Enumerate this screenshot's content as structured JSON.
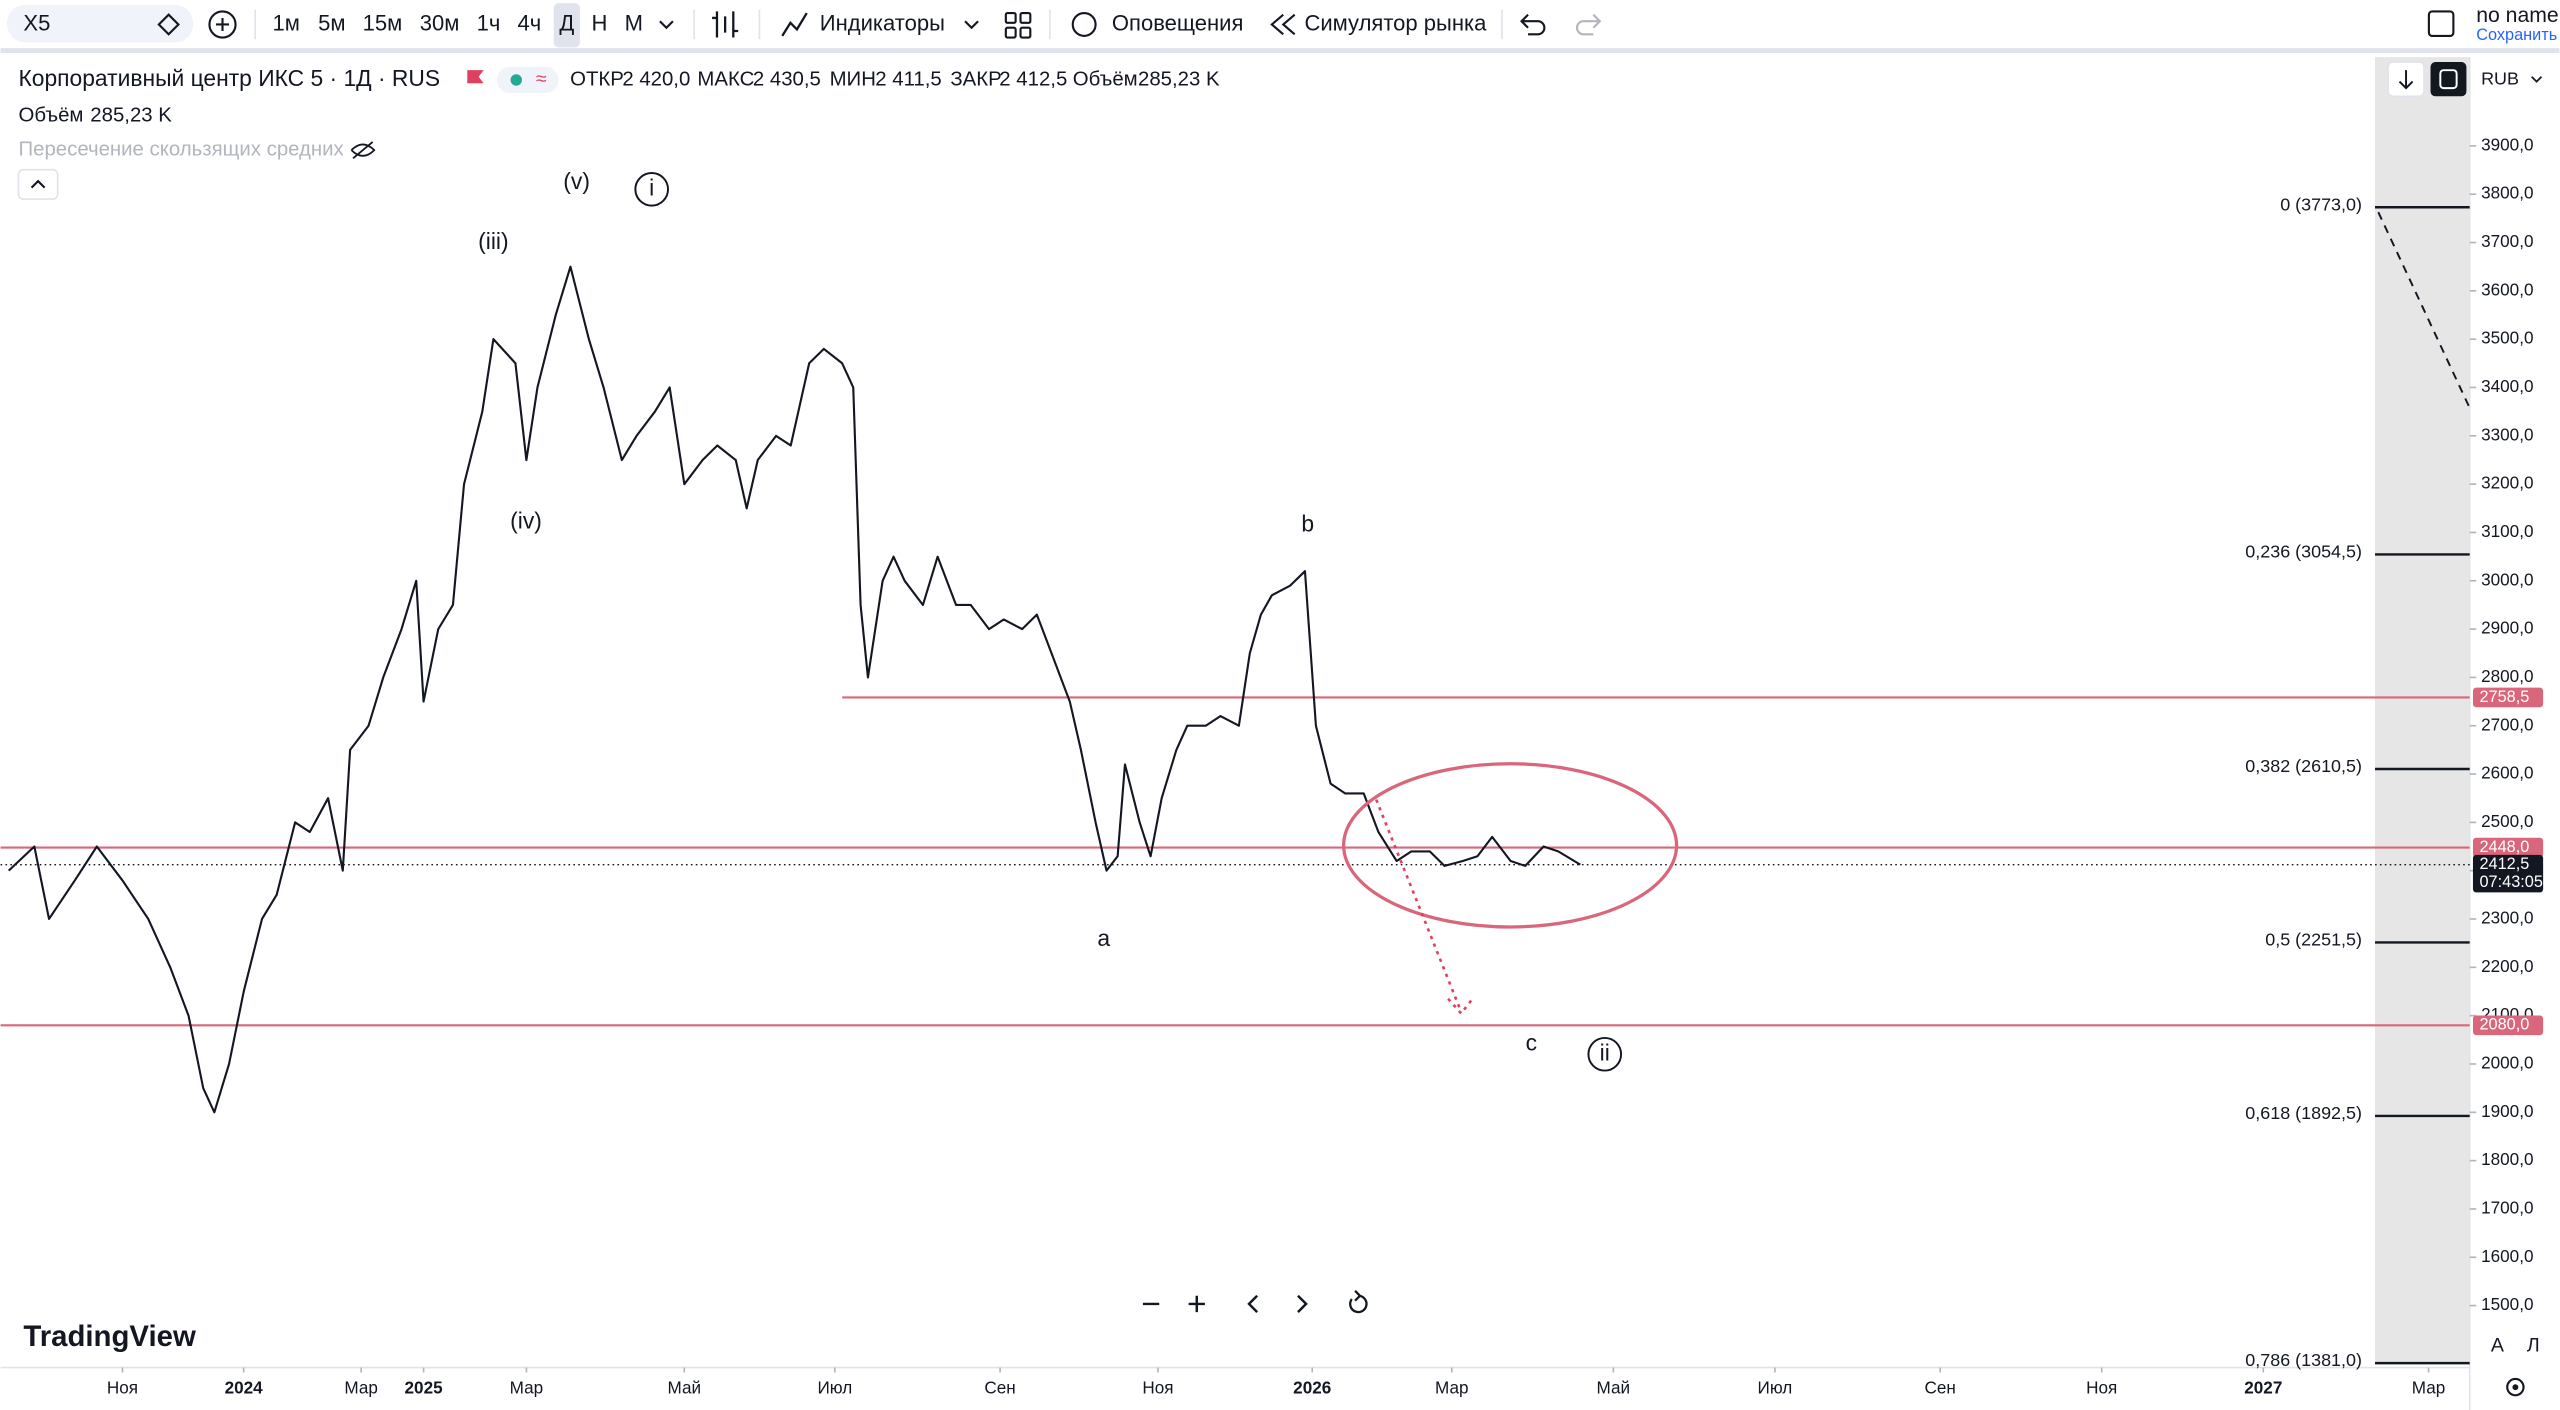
{
  "toolbar": {
    "symbol": "X5",
    "intervals": [
      "1м",
      "5м",
      "15м",
      "30м",
      "1ч",
      "4ч",
      "Д",
      "Н",
      "М"
    ],
    "indicators": "Индикаторы",
    "alerts": "Оповещения",
    "replay": "Симулятор рынка",
    "user": "no name",
    "save": "Сохранить"
  },
  "legend": {
    "title": "Корпоративный центр ИКС 5 · 1Д · RUS",
    "open_label": "ОТКР",
    "open": "2 420,0",
    "high_label": "МАКС",
    "high": "2 430,5",
    "low_label": "МИН",
    "low": "2 411,5",
    "close_label": "ЗАКР",
    "close": "2 412,5",
    "volume_label": "Объём",
    "volume": "285,23 K",
    "indicator": "Пересечение скользящих средних"
  },
  "currency": "RUB",
  "logo": "TradingView",
  "scale_buttons": [
    "A",
    "Л"
  ],
  "chart_data": {
    "type": "line",
    "color": "#131722",
    "x": [
      0,
      7,
      11,
      18,
      24,
      31,
      38,
      44,
      49,
      53,
      56,
      60,
      64,
      69,
      73,
      78,
      82,
      87,
      91,
      93,
      98,
      102,
      107,
      111,
      113,
      117,
      121,
      124,
      129,
      132,
      138,
      141,
      144,
      149,
      153,
      158,
      162,
      167,
      171,
      176,
      180,
      184,
      189,
      193,
      198,
      201,
      204,
      209,
      213,
      218,
      222,
      227,
      230,
      232,
      234,
      238,
      241,
      244,
      249,
      253,
      258,
      262,
      267,
      271,
      276,
      280,
      284,
      289,
      292,
      296,
      299,
      302,
      304,
      308,
      311,
      314,
      318,
      321,
      326,
      330,
      335,
      338,
      341,
      344,
      349,
      353,
      356,
      360,
      364,
      369,
      373,
      378,
      382,
      387,
      391,
      396,
      400,
      404,
      409,
      413,
      418,
      422,
      428
    ],
    "values": [
      2400,
      2450,
      2300,
      2380,
      2450,
      2380,
      2300,
      2200,
      2100,
      1950,
      1900,
      2000,
      2150,
      2300,
      2350,
      2500,
      2480,
      2550,
      2400,
      2650,
      2700,
      2800,
      2900,
      3000,
      2750,
      2900,
      2950,
      3200,
      3350,
      3500,
      3450,
      3250,
      3400,
      3550,
      3650,
      3500,
      3400,
      3250,
      3300,
      3350,
      3400,
      3200,
      3250,
      3280,
      3250,
      3150,
      3250,
      3300,
      3280,
      3450,
      3480,
      3450,
      3400,
      2950,
      2800,
      3000,
      3050,
      3000,
      2950,
      3050,
      2950,
      2950,
      2900,
      2920,
      2900,
      2930,
      2850,
      2750,
      2650,
      2500,
      2400,
      2430,
      2620,
      2500,
      2430,
      2550,
      2650,
      2700,
      2700,
      2720,
      2700,
      2850,
      2930,
      2970,
      2990,
      3020,
      2700,
      2580,
      2560,
      2560,
      2480,
      2420,
      2440,
      2440,
      2410,
      2420,
      2430,
      2470,
      2420,
      2410,
      2450,
      2440,
      2412.5
    ],
    "xlim": [
      -2.2,
      670.2
    ],
    "ylim": [
      1378.5,
      4083.7
    ],
    "xticks": [
      {
        "value": 31,
        "label": "Ноя"
      },
      {
        "value": 64,
        "label": "2024"
      },
      {
        "value": 96,
        "label": "Мар"
      },
      {
        "value": 113,
        "label": "2025"
      },
      {
        "value": 141,
        "label": "Мар"
      },
      {
        "value": 184,
        "label": "Май"
      },
      {
        "value": 225,
        "label": "Июл"
      },
      {
        "value": 270,
        "label": "Сен"
      },
      {
        "value": 313,
        "label": "Ноя"
      },
      {
        "value": 355,
        "label": "2026"
      },
      {
        "value": 393,
        "label": "Мар"
      },
      {
        "value": 437,
        "label": "Май"
      },
      {
        "value": 481,
        "label": "Июл"
      },
      {
        "value": 526,
        "label": "Сен"
      },
      {
        "value": 570,
        "label": "Ноя"
      },
      {
        "value": 614,
        "label": "2027"
      },
      {
        "value": 659,
        "label": "Мар"
      }
    ],
    "yticks": [
      {
        "value": 1500,
        "label": "1500,0"
      },
      {
        "value": 1600,
        "label": "1600,0"
      },
      {
        "value": 1700,
        "label": "1700,0"
      },
      {
        "value": 1800,
        "label": "1800,0"
      },
      {
        "value": 1900,
        "label": "1900,0"
      },
      {
        "value": 2000,
        "label": "2000,0"
      },
      {
        "value": 2100,
        "label": "2100,0"
      },
      {
        "value": 2200,
        "label": "2200,0"
      },
      {
        "value": 2300,
        "label": "2300,0"
      },
      {
        "value": 2400,
        "label": "2400,0"
      },
      {
        "value": 2500,
        "label": "2500,0"
      },
      {
        "value": 2600,
        "label": "2600,0"
      },
      {
        "value": 2700,
        "label": "2700,0"
      },
      {
        "value": 2800,
        "label": "2800,0"
      },
      {
        "value": 2900,
        "label": "2900,0"
      },
      {
        "value": 3000,
        "label": "3000,0"
      },
      {
        "value": 3100,
        "label": "3100,0"
      },
      {
        "value": 3200,
        "label": "3200,0"
      },
      {
        "value": 3300,
        "label": "3300,0"
      },
      {
        "value": 3400,
        "label": "3400,0"
      },
      {
        "value": 3500,
        "label": "3500,0"
      },
      {
        "value": 3600,
        "label": "3600,0"
      },
      {
        "value": 3700,
        "label": "3700,0"
      },
      {
        "value": 3800,
        "label": "3800,0"
      },
      {
        "value": 3900,
        "label": "3900,0"
      }
    ],
    "fib": [
      {
        "value": 3773.0,
        "label": "0 (3773,0)"
      },
      {
        "value": 3054.5,
        "label": "0,236 (3054,5)"
      },
      {
        "value": 2610.5,
        "label": "0,382 (2610,5)"
      },
      {
        "value": 2251.5,
        "label": "0,5 (2251,5)"
      },
      {
        "value": 1892.5,
        "label": "0,618 (1892,5)"
      },
      {
        "value": 1381.0,
        "label": "0,786 (1381,0)"
      }
    ],
    "hlines": [
      {
        "value": 2758.5,
        "label": "2758,5"
      },
      {
        "value": 2448.0,
        "label": "2448,0"
      },
      {
        "value": 2080.0,
        "label": "2080,0"
      }
    ],
    "hline_color": "#d9667a",
    "last": {
      "value": 2412.5,
      "label": "2412,5",
      "countdown": "07:43:05"
    },
    "waves": [
      "(iii)",
      "(v)",
      "i",
      "(iv)",
      "b",
      "a",
      "c",
      "ii"
    ]
  }
}
